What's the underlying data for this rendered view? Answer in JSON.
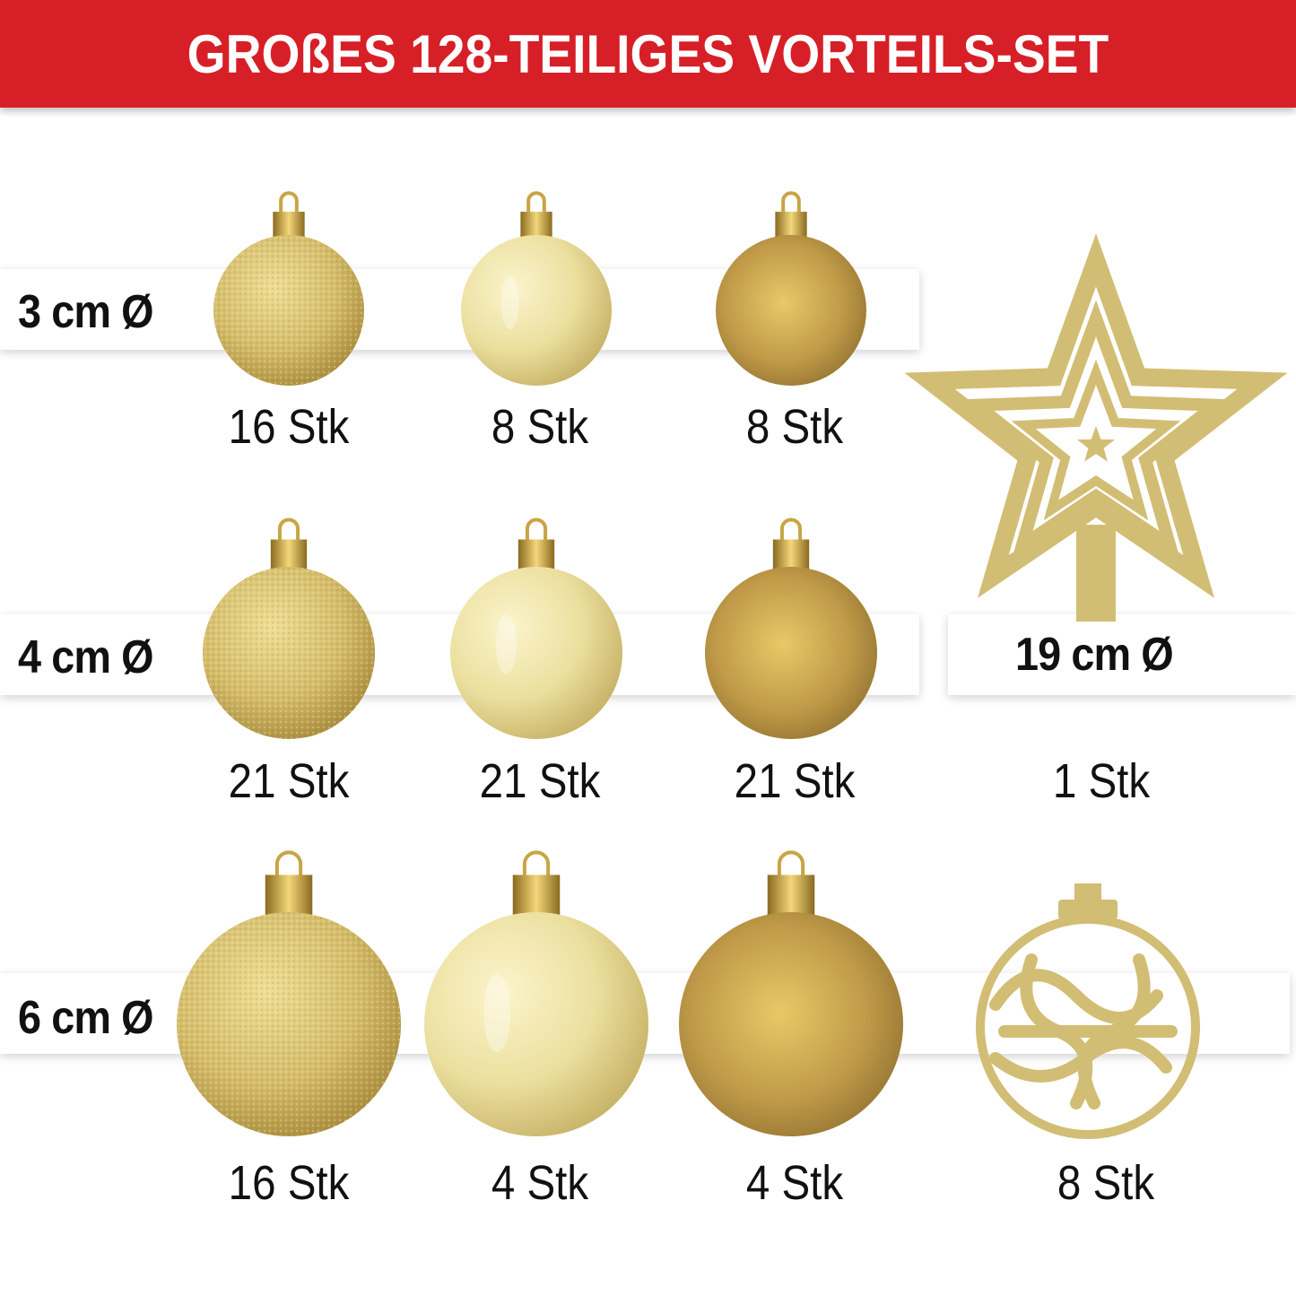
{
  "header": {
    "title": "GROßES 128-TEILIGES VORTEILS-SET"
  },
  "colors": {
    "header": "#d71f27",
    "glitter": "#d4bc6a",
    "shiny": "#ebdf9e",
    "matte": "#b89445"
  },
  "rows": [
    {
      "size": "3 cm Ø",
      "items": [
        {
          "type": "glitter",
          "qty": "16 Stk"
        },
        {
          "type": "shiny",
          "qty": "8 Stk"
        },
        {
          "type": "matte",
          "qty": "8 Stk"
        }
      ]
    },
    {
      "size": "4 cm Ø",
      "items": [
        {
          "type": "glitter",
          "qty": "21 Stk"
        },
        {
          "type": "shiny",
          "qty": "21 Stk"
        },
        {
          "type": "matte",
          "qty": "21 Stk"
        }
      ]
    },
    {
      "size": "6 cm Ø",
      "items": [
        {
          "type": "glitter",
          "qty": "16 Stk"
        },
        {
          "type": "shiny",
          "qty": "4 Stk"
        },
        {
          "type": "matte",
          "qty": "4 Stk"
        }
      ]
    }
  ],
  "star": {
    "size": "19 cm Ø",
    "qty": "1 Stk"
  },
  "filigree": {
    "qty": "8 Stk"
  }
}
